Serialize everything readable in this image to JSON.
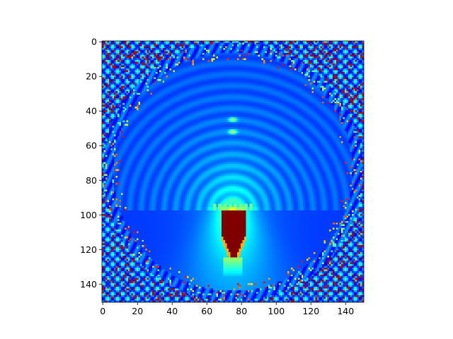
{
  "chart_data": {
    "type": "heatmap",
    "title": "",
    "xlabel": "",
    "ylabel": "",
    "colormap": "jet",
    "grid_size": [
      151,
      151
    ],
    "xlim": [
      0,
      150
    ],
    "ylim": [
      150,
      0
    ],
    "x_ticks": [
      "0",
      "20",
      "40",
      "60",
      "80",
      "100",
      "120",
      "140"
    ],
    "y_ticks": [
      "0",
      "20",
      "40",
      "60",
      "80",
      "100",
      "120",
      "140"
    ],
    "x_tick_values": [
      0,
      20,
      40,
      60,
      80,
      100,
      120,
      140
    ],
    "y_tick_values": [
      0,
      20,
      40,
      60,
      80,
      100,
      120,
      140
    ],
    "features": {
      "hot_core": {
        "x_range": [
          69,
          82
        ],
        "y_range": [
          98,
          124
        ],
        "value": 1.0
      },
      "cyan_cap_y": 96,
      "ring_center": [
        75,
        75
      ],
      "ring_radius": 73
    }
  }
}
